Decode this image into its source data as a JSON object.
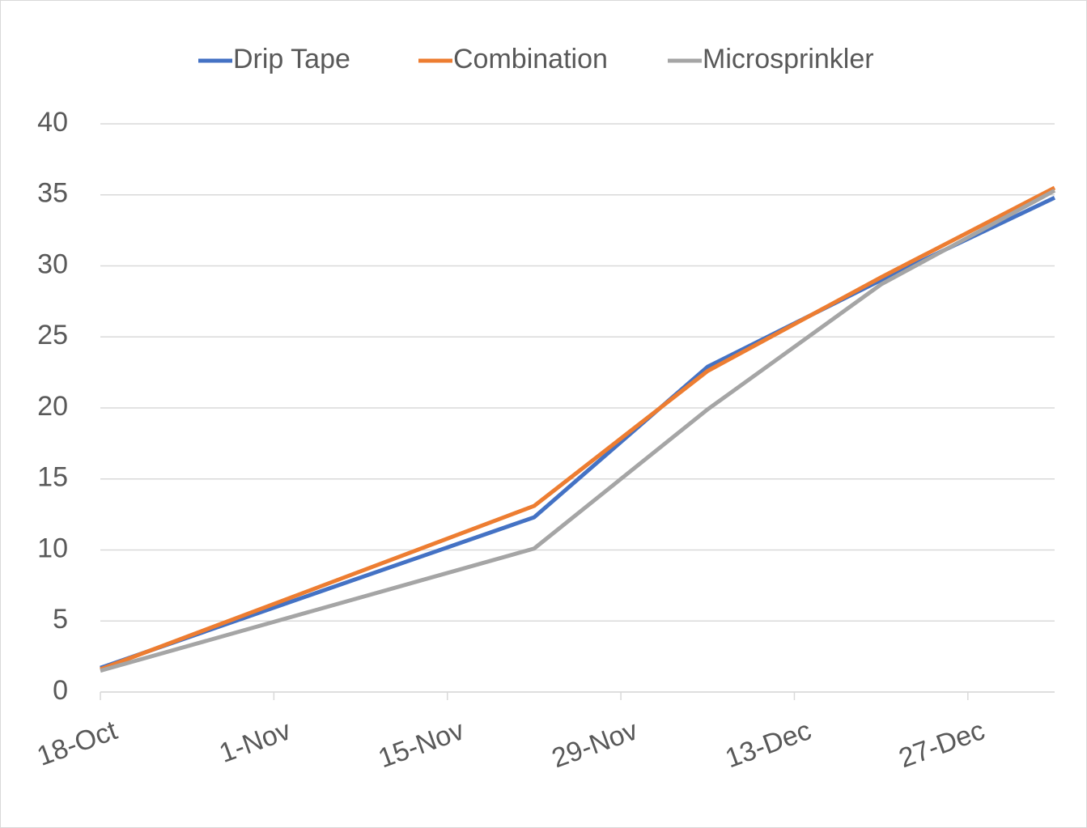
{
  "chart_data": {
    "type": "line",
    "x": [
      "18-Oct",
      "22-Nov",
      "6-Dec",
      "20-Dec",
      "3-Jan"
    ],
    "series": [
      {
        "name": "Drip Tape",
        "color": "#4472c4",
        "values": [
          1.7,
          12.3,
          22.9,
          29.0,
          34.8
        ]
      },
      {
        "name": "Combination",
        "color": "#ed7d31",
        "values": [
          1.6,
          13.1,
          22.6,
          29.2,
          35.5
        ]
      },
      {
        "name": "Microsprinkler",
        "color": "#a5a5a5",
        "values": [
          1.5,
          10.1,
          19.9,
          28.7,
          35.3
        ]
      }
    ],
    "xlim": [
      "18-Oct",
      "3-Jan"
    ],
    "xticks": [
      "18-Oct",
      "1-Nov",
      "15-Nov",
      "29-Nov",
      "13-Dec",
      "27-Dec"
    ],
    "ylim": [
      0,
      40
    ],
    "yticks": [
      0,
      5,
      10,
      15,
      20,
      25,
      30,
      35,
      40
    ],
    "grid": true,
    "legend": "top"
  }
}
